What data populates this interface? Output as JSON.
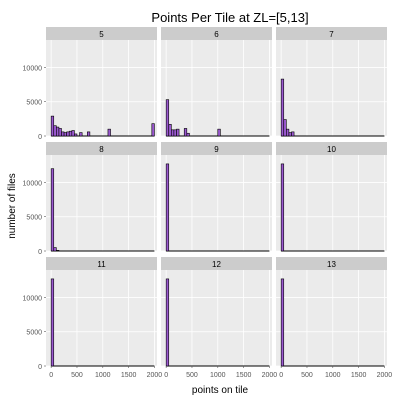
{
  "chart_data": {
    "type": "bar",
    "title": "Points Per Tile at ZL=[5,13]",
    "xlabel": "points on tile",
    "ylabel": "number of files",
    "xlim": [
      -100,
      2050
    ],
    "ylim": [
      0,
      14000
    ],
    "x_ticks": [
      0,
      500,
      1000,
      1500,
      2000
    ],
    "y_ticks": [
      0,
      5000,
      10000
    ],
    "bin_width": 50,
    "grid": true,
    "colors": {
      "bar_fill": "#9b59d0",
      "bar_stroke": "#000000",
      "panel_bg": "#ebebeb",
      "strip_bg": "#cccccc",
      "grid": "#ffffff"
    },
    "panels": [
      {
        "label": "5",
        "bins": [
          [
            0,
            2900
          ],
          [
            50,
            1500
          ],
          [
            100,
            1300
          ],
          [
            150,
            1100
          ],
          [
            200,
            600
          ],
          [
            250,
            500
          ],
          [
            300,
            600
          ],
          [
            350,
            700
          ],
          [
            400,
            800
          ],
          [
            450,
            300
          ],
          [
            550,
            500
          ],
          [
            700,
            600
          ],
          [
            1100,
            1000
          ],
          [
            1950,
            1800
          ]
        ]
      },
      {
        "label": "6",
        "bins": [
          [
            0,
            5300
          ],
          [
            50,
            1700
          ],
          [
            100,
            900
          ],
          [
            150,
            900
          ],
          [
            200,
            1000
          ],
          [
            350,
            1100
          ],
          [
            400,
            400
          ],
          [
            1000,
            1000
          ]
        ]
      },
      {
        "label": "7",
        "bins": [
          [
            0,
            8300
          ],
          [
            50,
            2400
          ],
          [
            100,
            1000
          ],
          [
            150,
            500
          ],
          [
            200,
            600
          ]
        ]
      },
      {
        "label": "8",
        "bins": [
          [
            0,
            12000
          ],
          [
            50,
            500
          ],
          [
            100,
            100
          ]
        ]
      },
      {
        "label": "9",
        "bins": [
          [
            0,
            12700
          ]
        ]
      },
      {
        "label": "10",
        "bins": [
          [
            0,
            12700
          ]
        ]
      },
      {
        "label": "11",
        "bins": [
          [
            0,
            12700
          ]
        ]
      },
      {
        "label": "12",
        "bins": [
          [
            0,
            12700
          ]
        ]
      },
      {
        "label": "13",
        "bins": [
          [
            0,
            12700
          ]
        ]
      }
    ]
  }
}
